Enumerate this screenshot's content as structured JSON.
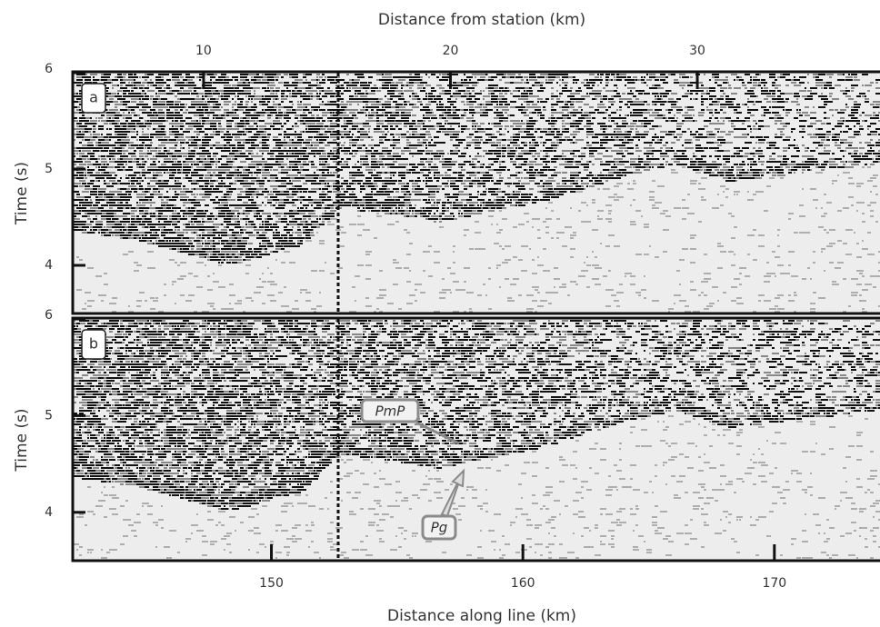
{
  "chart_data": [
    {
      "type": "seismic",
      "panel_label": "a",
      "ylabel": "Time (s)",
      "ylim": [
        3.5,
        6
      ],
      "yticks": [
        4,
        5,
        6
      ],
      "x2label": "Distance from station (km)",
      "x2lim": [
        4.7,
        37.4
      ],
      "x2ticks": [
        10,
        20,
        30
      ]
    },
    {
      "type": "seismic",
      "panel_label": "b",
      "ylabel": "Time (s)",
      "ylim": [
        3.5,
        6
      ],
      "yticks": [
        4,
        5,
        6
      ],
      "xlabel": "Distance along line (km)",
      "xlim": [
        142.1,
        174.2
      ],
      "xticks": [
        150,
        160,
        170
      ],
      "annotations": [
        "PmP",
        "Pg"
      ]
    }
  ]
}
